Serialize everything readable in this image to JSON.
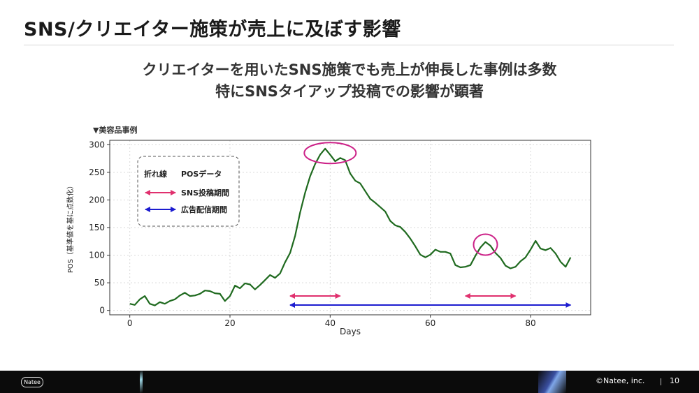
{
  "slide": {
    "title": "SNS/クリエイター施策が売上に及ぼす影響",
    "headline_line1": "クリエイターを用いたSNS施策でも売上が伸長した事例は多数",
    "headline_line2": "特にSNSタイアップ投稿での影響が顕著",
    "example_tag": "▼美容品事例"
  },
  "footer": {
    "logo_text": "Natee",
    "copyright": "©Natee, inc.",
    "page_number": "10"
  },
  "colors": {
    "line": "#1f6a1f",
    "sns_arrow": "#e0306e",
    "ad_arrow": "#1c1cd0",
    "highlight_circle": "#cc2288",
    "grid": "#d9d9d9"
  },
  "chart_data": {
    "type": "line",
    "xlabel": "Days",
    "ylabel": "POS（基準値を基に点数化）",
    "xlim": [
      -4,
      92
    ],
    "ylim": [
      -8,
      308
    ],
    "xticks": [
      0,
      20,
      40,
      60,
      80
    ],
    "yticks": [
      0,
      50,
      100,
      150,
      200,
      250,
      300
    ],
    "grid": true,
    "legend": {
      "placement": "top-left",
      "entries": [
        {
          "label": "折れ線",
          "desc": "POSデータ",
          "kind": "text"
        },
        {
          "label": "SNS投稿期間",
          "kind": "sns-arrow"
        },
        {
          "label": "広告配信期間",
          "kind": "ad-arrow"
        }
      ]
    },
    "series": [
      {
        "x": [
          0,
          1,
          2,
          3,
          4,
          5,
          6,
          7,
          8,
          9,
          10,
          11,
          12,
          13,
          14,
          15,
          16,
          17,
          18,
          19,
          20,
          21,
          22,
          23,
          24,
          25,
          26,
          27,
          28,
          29,
          30,
          31,
          32,
          33,
          34,
          35,
          36,
          37,
          38,
          39,
          40,
          41,
          42,
          43,
          44,
          45,
          46,
          47,
          48,
          49,
          50,
          51,
          52,
          53,
          54,
          55,
          56,
          57,
          58,
          59,
          60,
          61,
          62,
          63,
          64,
          65,
          66,
          67,
          68,
          69,
          70,
          71,
          72,
          73,
          74,
          75,
          76,
          77,
          78,
          79,
          80,
          81,
          82,
          83,
          84,
          85,
          86,
          87,
          88
        ],
        "y": [
          12,
          10,
          20,
          26,
          12,
          9,
          15,
          12,
          17,
          20,
          27,
          32,
          26,
          27,
          30,
          36,
          35,
          31,
          30,
          17,
          26,
          45,
          40,
          49,
          47,
          38,
          46,
          55,
          64,
          59,
          67,
          87,
          104,
          135,
          177,
          213,
          243,
          265,
          282,
          293,
          282,
          270,
          276,
          272,
          248,
          235,
          230,
          216,
          202,
          195,
          187,
          179,
          162,
          154,
          151,
          142,
          130,
          116,
          101,
          96,
          101,
          110,
          106,
          106,
          103,
          82,
          78,
          79,
          82,
          99,
          114,
          124,
          117,
          104,
          95,
          81,
          76,
          79,
          89,
          96,
          110,
          126,
          112,
          109,
          113,
          103,
          88,
          79,
          96
        ]
      }
    ],
    "periods": [
      {
        "kind": "sns",
        "x_start": 32,
        "x_end": 42
      },
      {
        "kind": "sns",
        "x_start": 67,
        "x_end": 77
      },
      {
        "kind": "ad",
        "x_start": 32,
        "x_end": 88
      }
    ],
    "highlights": [
      {
        "x": 40,
        "y": 285
      },
      {
        "x": 71,
        "y": 119
      }
    ]
  }
}
